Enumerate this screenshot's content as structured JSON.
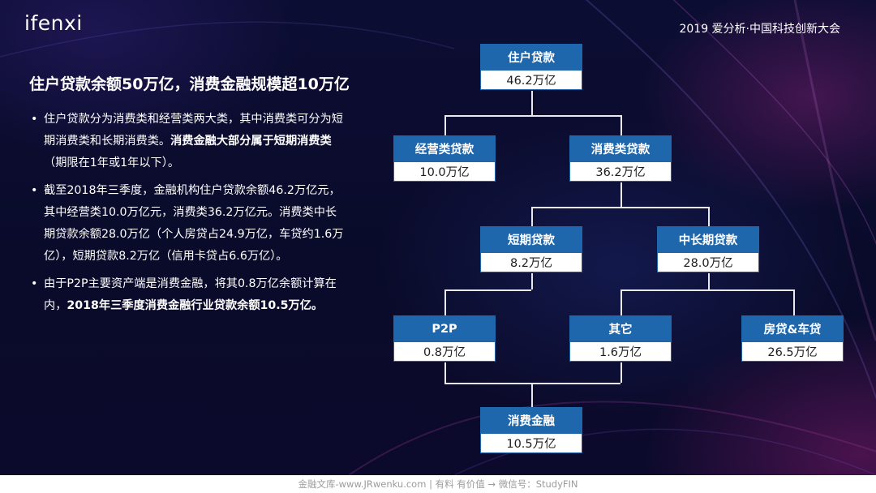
{
  "header": {
    "logo": "ifenxi",
    "conference": "2019 爱分析·中国科技创新大会"
  },
  "headline": "住户贷款余额50万亿，消费金融规模超10万亿",
  "bullets": [
    {
      "parts": [
        {
          "text": "住户贷款分为消费类和经营类两大类，其中消费类可分为短期消费类和长期消费类。",
          "bold": false
        },
        {
          "text": "消费金融大部分属于短期消费类",
          "bold": true
        },
        {
          "text": "（期限在1年或1年以下）。",
          "bold": false
        }
      ]
    },
    {
      "parts": [
        {
          "text": "截至2018年三季度，金融机构住户贷款余额46.2万亿元，其中经营类10.0万亿元，消费类36.2万亿元。消费类中长期贷款余额28.0万亿（个人房贷占24.9万亿，车贷约1.6万亿），短期贷款8.2万亿（信用卡贷占6.6万亿）。",
          "bold": false
        }
      ]
    },
    {
      "parts": [
        {
          "text": "由于P2P主要资产端是消费金融，将其0.8万亿余额计算在内，",
          "bold": false
        },
        {
          "text": "2018年三季度消费金融行业贷款余额10.5万亿。",
          "bold": true
        }
      ]
    }
  ],
  "bullet_char": "•",
  "tree": {
    "root": {
      "title": "住户贷款",
      "value": "46.2万亿"
    },
    "business": {
      "title": "经营类贷款",
      "value": "10.0万亿"
    },
    "consumer": {
      "title": "消费类贷款",
      "value": "36.2万亿"
    },
    "short_term": {
      "title": "短期贷款",
      "value": "8.2万亿"
    },
    "long_term": {
      "title": "中长期贷款",
      "value": "28.0万亿"
    },
    "p2p": {
      "title": "P2P",
      "value": "0.8万亿"
    },
    "other": {
      "title": "其它",
      "value": "1.6万亿"
    },
    "house_car": {
      "title": "房贷&车贷",
      "value": "26.5万亿"
    },
    "consumer_finance": {
      "title": "消费金融",
      "value": "10.5万亿"
    }
  },
  "footer": "金融文库-www.JRwenku.com | 有料 有价值 → 微信号：StudyFIN",
  "colors": {
    "node_header": "#1f67ad",
    "background": "#0b0c2e"
  }
}
